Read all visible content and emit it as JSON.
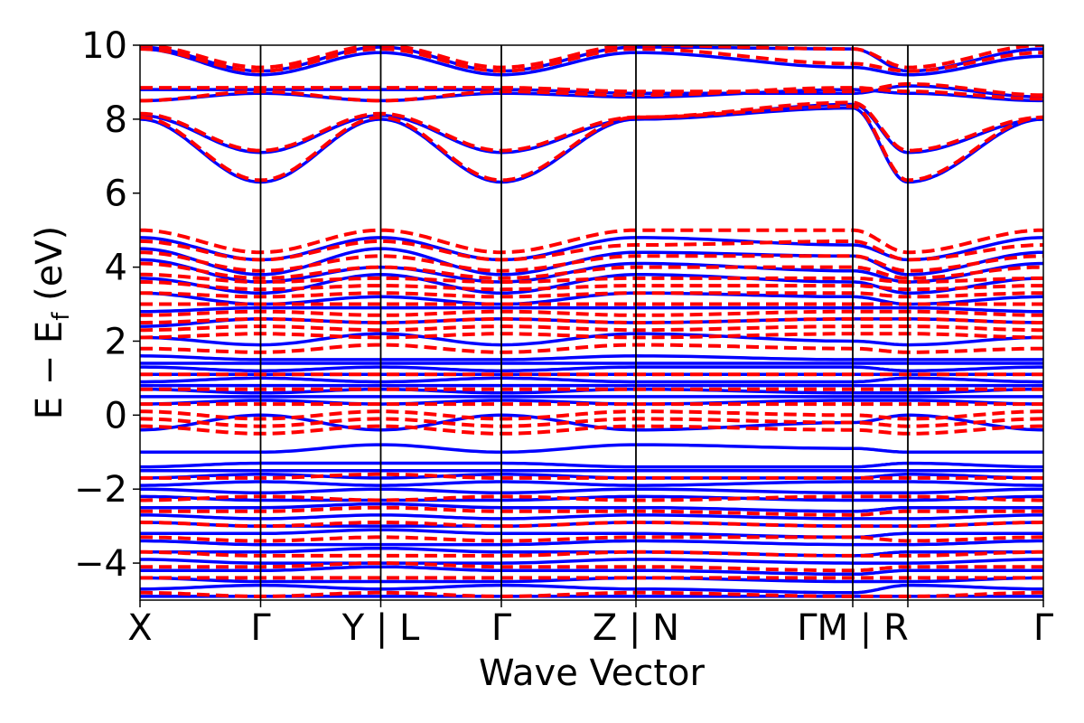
{
  "chart_data": {
    "type": "line",
    "title": "",
    "xlabel": "Wave Vector",
    "ylabel": "E − E_f (eV)",
    "ylabel_main": "E − E",
    "ylabel_sub": "f",
    "ylabel_tail": " (eV)",
    "ylim": [
      -5,
      10
    ],
    "yticks": [
      -4,
      -2,
      0,
      2,
      4,
      6,
      8,
      10
    ],
    "ytick_labels": [
      "−4",
      "−2",
      "0",
      "2",
      "4",
      "6",
      "8",
      "10"
    ],
    "xlim": [
      0,
      1
    ],
    "kpath_ticks": [
      {
        "x": 0.0,
        "label": "X"
      },
      {
        "x": 0.1335,
        "label": "Γ"
      },
      {
        "x": 0.2665,
        "label": "Y | L"
      },
      {
        "x": 0.4,
        "label": "Γ"
      },
      {
        "x": 0.549,
        "label": "Z | N"
      },
      {
        "x": 0.789,
        "label": "ΓM | R"
      },
      {
        "x": 0.85,
        "label": ""
      },
      {
        "x": 1.0,
        "label": "Γ"
      }
    ],
    "series": [
      {
        "color": "#0000ff",
        "style": "solid",
        "bands": [
          [
            9.95,
            9.3,
            9.95,
            9.3,
            9.95,
            9.9,
            9.3,
            9.9,
            9.2
          ],
          [
            9.9,
            9.2,
            9.8,
            9.2,
            9.8,
            9.4,
            9.2,
            9.7,
            9.3
          ],
          [
            8.8,
            8.8,
            8.8,
            8.8,
            8.7,
            8.7,
            8.9,
            8.6,
            8.8
          ],
          [
            8.5,
            8.7,
            8.5,
            8.7,
            8.6,
            8.8,
            8.7,
            8.5,
            8.7
          ],
          [
            8.1,
            7.1,
            8.1,
            7.1,
            8.0,
            8.4,
            7.1,
            8.0,
            7.1
          ],
          [
            8.0,
            6.3,
            8.0,
            6.3,
            8.0,
            8.3,
            6.3,
            8.0,
            6.3
          ],
          [
            4.8,
            4.2,
            4.8,
            4.2,
            4.8,
            4.6,
            4.2,
            4.8,
            4.1
          ],
          [
            4.5,
            3.8,
            4.5,
            3.8,
            4.4,
            4.3,
            3.8,
            4.4,
            3.8
          ],
          [
            4.2,
            3.6,
            4.0,
            3.6,
            4.1,
            3.9,
            3.6,
            4.1,
            3.6
          ],
          [
            3.7,
            3.3,
            3.8,
            3.3,
            3.8,
            3.6,
            3.3,
            3.7,
            3.3
          ],
          [
            3.3,
            3.0,
            3.2,
            3.0,
            3.3,
            3.2,
            3.0,
            3.2,
            3.0
          ],
          [
            2.8,
            2.9,
            2.9,
            2.9,
            2.9,
            2.9,
            2.9,
            2.8,
            2.9
          ],
          [
            2.4,
            2.6,
            2.5,
            2.6,
            2.5,
            2.6,
            2.6,
            2.5,
            2.6
          ],
          [
            2.1,
            1.9,
            2.2,
            1.9,
            2.2,
            2.0,
            1.9,
            2.1,
            2.0
          ],
          [
            1.6,
            1.5,
            1.5,
            1.5,
            1.6,
            1.5,
            1.5,
            1.5,
            1.5
          ],
          [
            1.4,
            1.4,
            1.4,
            1.4,
            1.4,
            1.4,
            1.4,
            1.4,
            1.4
          ],
          [
            1.3,
            1.2,
            1.3,
            1.2,
            1.3,
            1.3,
            1.2,
            1.3,
            1.2
          ],
          [
            1.1,
            1.1,
            1.1,
            1.1,
            1.1,
            1.1,
            1.1,
            1.1,
            1.1
          ],
          [
            0.9,
            1.0,
            0.9,
            1.0,
            0.9,
            0.9,
            1.0,
            0.9,
            1.0
          ],
          [
            0.8,
            0.8,
            0.8,
            0.8,
            0.8,
            0.8,
            0.8,
            0.8,
            0.8
          ],
          [
            0.7,
            0.6,
            0.7,
            0.6,
            0.7,
            0.6,
            0.6,
            0.7,
            0.6
          ],
          [
            0.5,
            0.5,
            0.5,
            0.5,
            0.5,
            0.5,
            0.5,
            0.5,
            0.5
          ],
          [
            0.3,
            0.4,
            0.3,
            0.4,
            0.3,
            0.4,
            0.4,
            0.3,
            0.4
          ],
          [
            -0.4,
            0.0,
            -0.4,
            0.0,
            -0.4,
            -0.2,
            0.0,
            -0.4,
            0.0
          ],
          [
            -1.0,
            -1.0,
            -0.8,
            -1.0,
            -0.8,
            -0.9,
            -1.0,
            -1.0,
            -1.0
          ],
          [
            -1.4,
            -1.3,
            -1.3,
            -1.3,
            -1.4,
            -1.4,
            -1.3,
            -1.4,
            -1.3
          ],
          [
            -1.5,
            -1.5,
            -1.5,
            -1.5,
            -1.5,
            -1.5,
            -1.5,
            -1.5,
            -1.5
          ],
          [
            -1.7,
            -1.6,
            -1.7,
            -1.6,
            -1.7,
            -1.7,
            -1.6,
            -1.7,
            -1.6
          ],
          [
            -1.9,
            -1.8,
            -1.9,
            -1.8,
            -1.9,
            -1.8,
            -1.8,
            -1.9,
            -1.8
          ],
          [
            -2.0,
            -2.1,
            -2.0,
            -2.1,
            -2.0,
            -2.1,
            -2.1,
            -2.0,
            -2.1
          ],
          [
            -2.2,
            -2.3,
            -2.3,
            -2.3,
            -2.2,
            -2.3,
            -2.3,
            -2.2,
            -2.3
          ],
          [
            -2.5,
            -2.5,
            -2.4,
            -2.5,
            -2.5,
            -2.6,
            -2.5,
            -2.5,
            -2.5
          ],
          [
            -2.7,
            -2.8,
            -2.7,
            -2.8,
            -2.7,
            -2.8,
            -2.8,
            -2.7,
            -2.8
          ],
          [
            -2.9,
            -3.0,
            -3.0,
            -3.0,
            -2.9,
            -3.0,
            -3.0,
            -2.9,
            -3.0
          ],
          [
            -3.2,
            -3.2,
            -3.1,
            -3.2,
            -3.2,
            -3.3,
            -3.2,
            -3.2,
            -3.2
          ],
          [
            -3.4,
            -3.5,
            -3.5,
            -3.5,
            -3.4,
            -3.5,
            -3.5,
            -3.4,
            -3.5
          ],
          [
            -3.7,
            -3.7,
            -3.6,
            -3.7,
            -3.7,
            -3.8,
            -3.7,
            -3.7,
            -3.7
          ],
          [
            -3.9,
            -4.0,
            -4.0,
            -4.0,
            -3.9,
            -4.0,
            -4.0,
            -3.9,
            -4.0
          ],
          [
            -4.2,
            -4.2,
            -4.1,
            -4.2,
            -4.2,
            -4.3,
            -4.2,
            -4.2,
            -4.2
          ],
          [
            -4.4,
            -4.5,
            -4.5,
            -4.5,
            -4.4,
            -4.5,
            -4.5,
            -4.4,
            -4.5
          ],
          [
            -4.7,
            -4.6,
            -4.7,
            -4.6,
            -4.7,
            -4.8,
            -4.6,
            -4.7,
            -4.6
          ],
          [
            -4.9,
            -4.9,
            -4.9,
            -4.9,
            -4.9,
            -4.9,
            -4.9,
            -4.9,
            -4.9
          ]
        ]
      },
      {
        "color": "#ff0000",
        "style": "dashed",
        "bands": [
          [
            10.0,
            9.4,
            10.0,
            9.4,
            10.0,
            9.9,
            9.4,
            10.0,
            9.3
          ],
          [
            9.9,
            9.3,
            9.9,
            9.3,
            9.9,
            9.5,
            9.3,
            9.8,
            9.3
          ],
          [
            8.85,
            8.85,
            8.85,
            8.85,
            8.75,
            8.75,
            8.95,
            8.65,
            8.85
          ],
          [
            8.5,
            8.75,
            8.5,
            8.75,
            8.65,
            8.85,
            8.75,
            8.55,
            8.75
          ],
          [
            8.15,
            7.15,
            8.15,
            7.15,
            8.05,
            8.45,
            7.15,
            8.05,
            7.15
          ],
          [
            8.05,
            6.35,
            8.05,
            6.35,
            8.05,
            8.35,
            6.35,
            8.05,
            6.35
          ],
          [
            5.0,
            4.4,
            5.0,
            4.4,
            5.0,
            5.0,
            4.4,
            5.0,
            4.4
          ],
          [
            4.7,
            4.2,
            4.7,
            4.2,
            4.6,
            4.7,
            4.2,
            4.6,
            4.2
          ],
          [
            4.4,
            3.9,
            4.3,
            3.9,
            4.3,
            4.3,
            3.9,
            4.3,
            3.9
          ],
          [
            4.1,
            3.7,
            4.0,
            3.7,
            4.0,
            4.0,
            3.7,
            4.0,
            3.7
          ],
          [
            3.8,
            3.6,
            3.7,
            3.6,
            3.7,
            3.7,
            3.6,
            3.7,
            3.6
          ],
          [
            3.6,
            3.4,
            3.5,
            3.4,
            3.5,
            3.5,
            3.4,
            3.5,
            3.4
          ],
          [
            3.3,
            3.2,
            3.3,
            3.2,
            3.3,
            3.3,
            3.2,
            3.3,
            3.2
          ],
          [
            3.0,
            3.0,
            3.0,
            3.0,
            3.0,
            3.0,
            3.0,
            3.0,
            3.0
          ],
          [
            2.7,
            2.8,
            2.7,
            2.8,
            2.7,
            2.8,
            2.8,
            2.7,
            2.8
          ],
          [
            2.5,
            2.6,
            2.5,
            2.6,
            2.5,
            2.6,
            2.6,
            2.5,
            2.6
          ],
          [
            2.3,
            2.4,
            2.3,
            2.4,
            2.3,
            2.4,
            2.4,
            2.3,
            2.4
          ],
          [
            2.1,
            2.2,
            2.1,
            2.2,
            2.1,
            2.2,
            2.2,
            2.1,
            2.2
          ],
          [
            1.8,
            1.7,
            1.9,
            1.7,
            1.9,
            1.8,
            1.7,
            1.8,
            1.7
          ],
          [
            1.1,
            1.1,
            1.1,
            1.1,
            1.1,
            1.1,
            1.1,
            1.1,
            1.1
          ],
          [
            0.7,
            0.7,
            0.7,
            0.7,
            0.7,
            0.7,
            0.7,
            0.7,
            0.7
          ],
          [
            0.3,
            0.3,
            0.3,
            0.3,
            0.3,
            0.3,
            0.3,
            0.3,
            0.3
          ],
          [
            0.1,
            -0.1,
            0.1,
            -0.1,
            0.1,
            0.0,
            -0.1,
            0.1,
            -0.1
          ],
          [
            -0.1,
            -0.3,
            -0.1,
            -0.3,
            -0.1,
            -0.2,
            -0.3,
            -0.1,
            -0.3
          ],
          [
            -0.3,
            -0.5,
            -0.3,
            -0.5,
            -0.3,
            -0.4,
            -0.5,
            -0.3,
            -0.5
          ],
          [
            -1.7,
            -1.7,
            -1.6,
            -1.7,
            -1.7,
            -1.7,
            -1.7,
            -1.7,
            -1.7
          ],
          [
            -2.3,
            -2.2,
            -2.3,
            -2.2,
            -2.3,
            -2.2,
            -2.2,
            -2.3,
            -2.2
          ],
          [
            -2.6,
            -2.6,
            -2.5,
            -2.6,
            -2.6,
            -2.7,
            -2.6,
            -2.6,
            -2.6
          ],
          [
            -2.9,
            -3.0,
            -2.9,
            -3.0,
            -2.9,
            -3.0,
            -3.0,
            -2.9,
            -3.0
          ],
          [
            -3.3,
            -3.4,
            -3.3,
            -3.4,
            -3.3,
            -3.3,
            -3.4,
            -3.3,
            -3.4
          ],
          [
            -3.7,
            -3.8,
            -3.8,
            -3.8,
            -3.7,
            -3.8,
            -3.8,
            -3.7,
            -3.8
          ],
          [
            -4.1,
            -4.1,
            -4.0,
            -4.1,
            -4.1,
            -4.2,
            -4.1,
            -4.1,
            -4.1
          ],
          [
            -4.4,
            -4.4,
            -4.4,
            -4.4,
            -4.4,
            -4.4,
            -4.4,
            -4.4,
            -4.4
          ],
          [
            -4.8,
            -4.9,
            -4.8,
            -4.9,
            -4.8,
            -4.9,
            -4.9,
            -4.8,
            -4.9
          ]
        ]
      }
    ]
  }
}
